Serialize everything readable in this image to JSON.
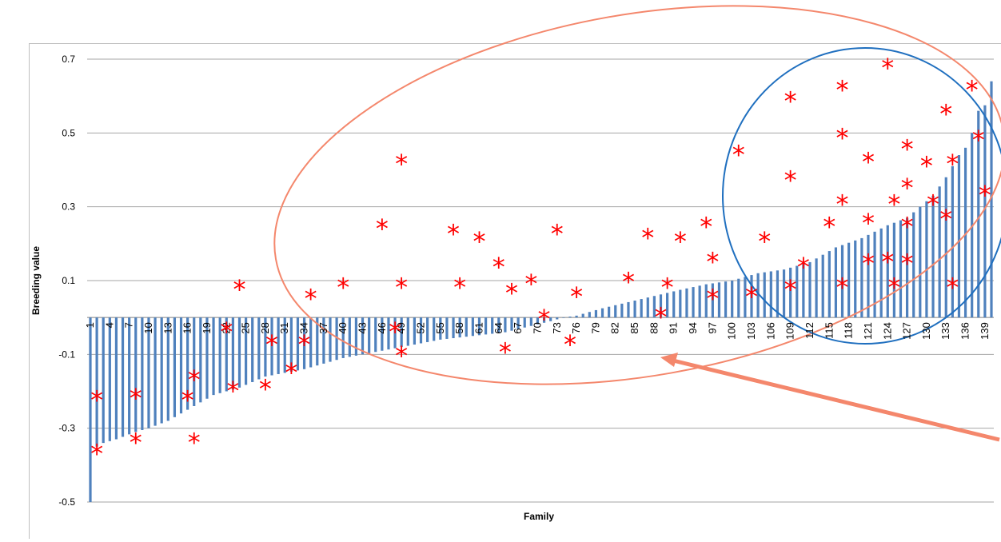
{
  "chart_data": {
    "type": "bar",
    "xlabel": "Family",
    "ylabel": "Breeding value",
    "ylim": [
      -0.5,
      0.7
    ],
    "yticks": [
      -0.5,
      -0.3,
      -0.1,
      0.1,
      0.3,
      0.5,
      0.7
    ],
    "ytick_labels": [
      "-0.5",
      "-0.3",
      "-0.1",
      "0.1",
      "0.3",
      "0.5",
      "0.7"
    ],
    "grid": "horizontal",
    "bar_color": "#4f81bd",
    "marker_color": "#ff0000",
    "highlight_colors": {
      "large_ellipse": "#f4876c",
      "small_circle": "#1f6fbf",
      "arrow": "#f4876c"
    },
    "x_tick_step": 3,
    "n_families": 140,
    "bar_value_anchors": [
      [
        1,
        -0.5
      ],
      [
        2,
        -0.35
      ],
      [
        3,
        -0.34
      ],
      [
        5,
        -0.33
      ],
      [
        8,
        -0.31
      ],
      [
        10,
        -0.3
      ],
      [
        13,
        -0.28
      ],
      [
        16,
        -0.25
      ],
      [
        20,
        -0.21
      ],
      [
        24,
        -0.19
      ],
      [
        28,
        -0.16
      ],
      [
        34,
        -0.14
      ],
      [
        40,
        -0.11
      ],
      [
        46,
        -0.09
      ],
      [
        55,
        -0.06
      ],
      [
        65,
        -0.04
      ],
      [
        72,
        -0.01
      ],
      [
        74,
        0.0
      ],
      [
        76,
        0.005
      ],
      [
        80,
        0.025
      ],
      [
        86,
        0.05
      ],
      [
        92,
        0.075
      ],
      [
        96,
        0.09
      ],
      [
        100,
        0.1
      ],
      [
        104,
        0.12
      ],
      [
        108,
        0.13
      ],
      [
        112,
        0.15
      ],
      [
        116,
        0.19
      ],
      [
        120,
        0.215
      ],
      [
        124,
        0.25
      ],
      [
        127,
        0.27
      ],
      [
        129,
        0.3
      ],
      [
        131,
        0.33
      ],
      [
        133,
        0.38
      ],
      [
        135,
        0.44
      ],
      [
        136,
        0.46
      ],
      [
        137,
        0.5
      ],
      [
        138,
        0.56
      ],
      [
        139,
        0.575
      ],
      [
        140,
        0.64
      ]
    ],
    "marker_points": [
      [
        2,
        -0.215
      ],
      [
        2,
        -0.36
      ],
      [
        8,
        -0.21
      ],
      [
        8,
        -0.33
      ],
      [
        16,
        -0.215
      ],
      [
        17,
        -0.16
      ],
      [
        17,
        -0.33
      ],
      [
        22,
        -0.03
      ],
      [
        23,
        -0.19
      ],
      [
        24,
        0.085
      ],
      [
        28,
        -0.185
      ],
      [
        29,
        -0.065
      ],
      [
        32,
        -0.14
      ],
      [
        34,
        -0.065
      ],
      [
        35,
        0.06
      ],
      [
        40,
        0.09
      ],
      [
        46,
        0.25
      ],
      [
        48,
        -0.03
      ],
      [
        49,
        0.425
      ],
      [
        49,
        0.09
      ],
      [
        49,
        -0.095
      ],
      [
        57,
        0.235
      ],
      [
        58,
        0.09
      ],
      [
        61,
        0.215
      ],
      [
        64,
        0.145
      ],
      [
        65,
        -0.085
      ],
      [
        66,
        0.075
      ],
      [
        69,
        0.1
      ],
      [
        71,
        0.005
      ],
      [
        73,
        0.235
      ],
      [
        75,
        -0.065
      ],
      [
        76,
        0.065
      ],
      [
        84,
        0.105
      ],
      [
        87,
        0.225
      ],
      [
        89,
        0.01
      ],
      [
        90,
        0.09
      ],
      [
        92,
        0.215
      ],
      [
        96,
        0.255
      ],
      [
        97,
        0.16
      ],
      [
        97,
        0.06
      ],
      [
        101,
        0.45
      ],
      [
        103,
        0.065
      ],
      [
        105,
        0.215
      ],
      [
        109,
        0.595
      ],
      [
        109,
        0.38
      ],
      [
        109,
        0.085
      ],
      [
        111,
        0.145
      ],
      [
        115,
        0.255
      ],
      [
        117,
        0.625
      ],
      [
        117,
        0.495
      ],
      [
        117,
        0.315
      ],
      [
        117,
        0.09
      ],
      [
        121,
        0.43
      ],
      [
        121,
        0.265
      ],
      [
        121,
        0.155
      ],
      [
        124,
        0.685
      ],
      [
        124,
        0.16
      ],
      [
        125,
        0.315
      ],
      [
        125,
        0.09
      ],
      [
        127,
        0.465
      ],
      [
        127,
        0.36
      ],
      [
        127,
        0.255
      ],
      [
        127,
        0.155
      ],
      [
        130,
        0.42
      ],
      [
        131,
        0.315
      ],
      [
        133,
        0.56
      ],
      [
        133,
        0.275
      ],
      [
        134,
        0.425
      ],
      [
        134,
        0.09
      ],
      [
        137,
        0.625
      ],
      [
        138,
        0.49
      ],
      [
        139,
        0.34
      ]
    ]
  }
}
